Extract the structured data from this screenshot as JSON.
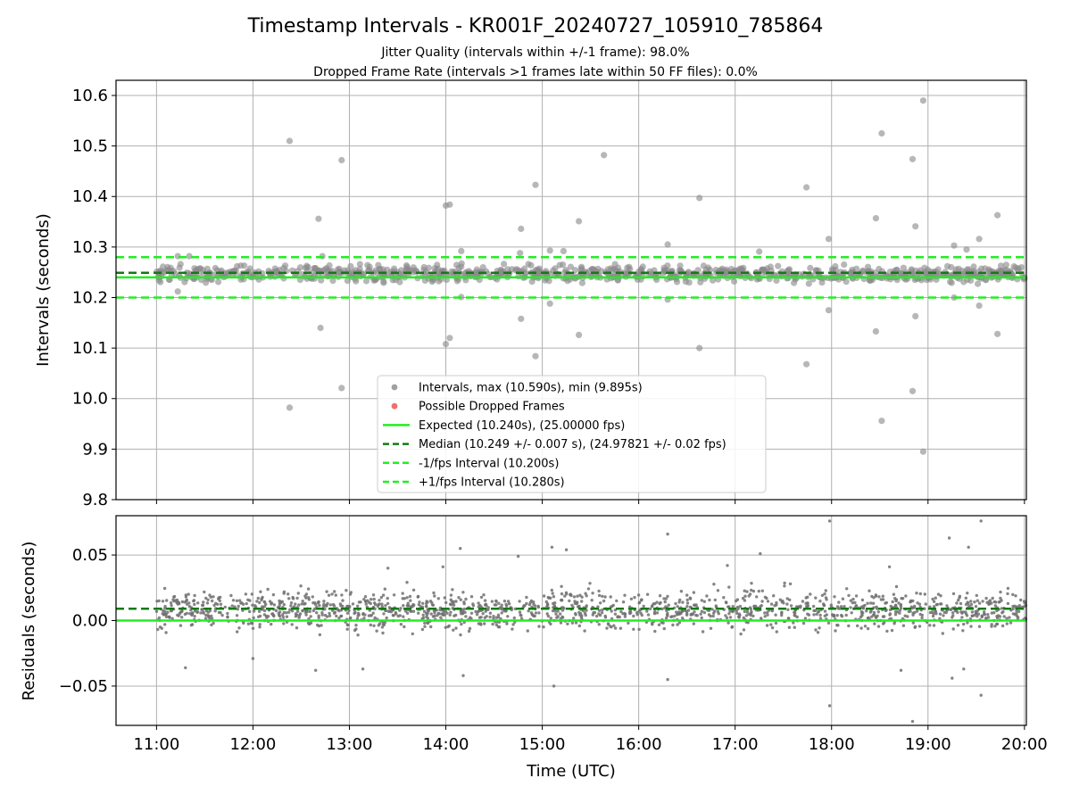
{
  "figure": {
    "title": "Timestamp Intervals - KR001F_20240727_105910_785864",
    "subtitle_line1": "Jitter Quality (intervals within +/-1 frame): 98.0%",
    "subtitle_line2": "Dropped Frame Rate (intervals >1 frames late within 50 FF files): 0.0%"
  },
  "chart_data": [
    {
      "type": "scatter",
      "panel": "intervals",
      "xlabel": "",
      "ylabel": "Intervals (seconds)",
      "xlim": [
        10.58,
        20.02
      ],
      "ylim": [
        9.8,
        10.63
      ],
      "yticks": [
        9.8,
        9.9,
        10.0,
        10.1,
        10.2,
        10.3,
        10.4,
        10.5,
        10.6
      ],
      "ytick_labels": [
        "9.8",
        "9.9",
        "10.0",
        "10.1",
        "10.2",
        "10.3",
        "10.4",
        "10.5",
        "10.6"
      ],
      "grid": true,
      "legend_position": "lower-center",
      "reference_lines": {
        "expected": 10.24,
        "median": 10.249,
        "minus_interval": 10.2,
        "plus_interval": 10.28
      },
      "dense_band": {
        "center": 10.247,
        "spread": 0.014,
        "x_start": 11.0,
        "x_end": 20.02
      },
      "outliers": [
        {
          "x": 12.38,
          "y": 10.51
        },
        {
          "x": 12.38,
          "y": 9.982
        },
        {
          "x": 12.68,
          "y": 10.356
        },
        {
          "x": 12.7,
          "y": 10.14
        },
        {
          "x": 12.92,
          "y": 10.472
        },
        {
          "x": 12.92,
          "y": 10.021
        },
        {
          "x": 14.0,
          "y": 10.382
        },
        {
          "x": 14.04,
          "y": 10.384
        },
        {
          "x": 14.0,
          "y": 10.108
        },
        {
          "x": 14.04,
          "y": 10.12
        },
        {
          "x": 14.78,
          "y": 10.336
        },
        {
          "x": 14.78,
          "y": 10.158
        },
        {
          "x": 14.93,
          "y": 10.423
        },
        {
          "x": 14.93,
          "y": 10.084
        },
        {
          "x": 15.08,
          "y": 10.293
        },
        {
          "x": 15.08,
          "y": 10.188
        },
        {
          "x": 15.22,
          "y": 10.292
        },
        {
          "x": 15.38,
          "y": 10.351
        },
        {
          "x": 15.38,
          "y": 10.126
        },
        {
          "x": 15.64,
          "y": 10.482
        },
        {
          "x": 16.3,
          "y": 10.305
        },
        {
          "x": 16.3,
          "y": 10.196
        },
        {
          "x": 16.63,
          "y": 10.397
        },
        {
          "x": 16.63,
          "y": 10.1
        },
        {
          "x": 17.25,
          "y": 10.291
        },
        {
          "x": 17.74,
          "y": 10.418
        },
        {
          "x": 17.74,
          "y": 10.068
        },
        {
          "x": 17.97,
          "y": 10.316
        },
        {
          "x": 17.97,
          "y": 10.175
        },
        {
          "x": 18.46,
          "y": 10.357
        },
        {
          "x": 18.46,
          "y": 10.133
        },
        {
          "x": 18.52,
          "y": 10.525
        },
        {
          "x": 18.52,
          "y": 9.956
        },
        {
          "x": 18.84,
          "y": 10.474
        },
        {
          "x": 18.84,
          "y": 10.015
        },
        {
          "x": 18.87,
          "y": 10.341
        },
        {
          "x": 18.87,
          "y": 10.163
        },
        {
          "x": 18.95,
          "y": 10.59
        },
        {
          "x": 18.95,
          "y": 9.895
        },
        {
          "x": 19.27,
          "y": 10.303
        },
        {
          "x": 19.27,
          "y": 10.2
        },
        {
          "x": 19.53,
          "y": 10.316
        },
        {
          "x": 19.53,
          "y": 10.184
        },
        {
          "x": 19.72,
          "y": 10.363
        },
        {
          "x": 19.72,
          "y": 10.128
        },
        {
          "x": 19.4,
          "y": 10.295
        },
        {
          "x": 14.16,
          "y": 10.292
        },
        {
          "x": 12.72,
          "y": 10.282
        },
        {
          "x": 11.22,
          "y": 10.282
        },
        {
          "x": 11.34,
          "y": 10.282
        },
        {
          "x": 14.77,
          "y": 10.288
        },
        {
          "x": 11.22,
          "y": 10.212
        },
        {
          "x": 14.16,
          "y": 10.201
        }
      ],
      "legend": [
        {
          "label": "Intervals, max (10.590s), min (9.895s)",
          "kind": "point",
          "color": "#a0a0a0"
        },
        {
          "label": "Possible Dropped Frames",
          "kind": "point",
          "color": "#f07070"
        },
        {
          "label": "Expected (10.240s), (25.00000 fps)",
          "kind": "line",
          "color": "#22ee22",
          "dash": "solid"
        },
        {
          "label": "Median (10.249 +/- 0.007 s), (24.97821 +/- 0.02 fps)",
          "kind": "line",
          "color": "#127a12",
          "dash": "dashed"
        },
        {
          "label": "-1/fps Interval (10.200s)",
          "kind": "line",
          "color": "#22ee22",
          "dash": "dashed"
        },
        {
          "label": "+1/fps Interval (10.280s)",
          "kind": "line",
          "color": "#22ee22",
          "dash": "dashed"
        }
      ]
    },
    {
      "type": "scatter",
      "panel": "residuals",
      "xlabel": "Time (UTC)",
      "ylabel": "Residuals (seconds)",
      "xlim": [
        10.58,
        20.02
      ],
      "ylim": [
        -0.08,
        0.08
      ],
      "x_ticks": [
        11,
        12,
        13,
        14,
        15,
        16,
        17,
        18,
        19,
        20
      ],
      "x_tick_labels": [
        "11:00",
        "12:00",
        "13:00",
        "14:00",
        "15:00",
        "16:00",
        "17:00",
        "18:00",
        "19:00",
        "20:00"
      ],
      "yticks": [
        -0.05,
        0.0,
        0.05
      ],
      "ytick_labels": [
        "−0.05",
        "0.00",
        "0.05"
      ],
      "grid": true,
      "reference_lines": {
        "zero": 0.0,
        "median_offset": 0.009
      },
      "dense_band": {
        "center": 0.008,
        "spread": 0.012,
        "x_start": 11.0,
        "x_end": 20.02
      },
      "outliers": [
        {
          "x": 17.98,
          "y": 0.076
        },
        {
          "x": 19.55,
          "y": 0.076
        },
        {
          "x": 16.3,
          "y": 0.066
        },
        {
          "x": 19.22,
          "y": 0.063
        },
        {
          "x": 14.15,
          "y": 0.055
        },
        {
          "x": 15.1,
          "y": 0.056
        },
        {
          "x": 15.25,
          "y": 0.054
        },
        {
          "x": 19.42,
          "y": 0.056
        },
        {
          "x": 17.26,
          "y": 0.051
        },
        {
          "x": 14.75,
          "y": 0.049
        },
        {
          "x": 18.84,
          "y": -0.077
        },
        {
          "x": 17.98,
          "y": -0.065
        },
        {
          "x": 15.12,
          "y": -0.05
        },
        {
          "x": 19.55,
          "y": -0.057
        },
        {
          "x": 16.3,
          "y": -0.045
        },
        {
          "x": 14.18,
          "y": -0.042
        },
        {
          "x": 19.25,
          "y": -0.044
        },
        {
          "x": 12.0,
          "y": -0.029
        },
        {
          "x": 11.3,
          "y": -0.036
        },
        {
          "x": 12.65,
          "y": -0.038
        },
        {
          "x": 13.14,
          "y": -0.037
        },
        {
          "x": 18.72,
          "y": -0.038
        },
        {
          "x": 19.37,
          "y": -0.037
        },
        {
          "x": 13.4,
          "y": 0.04
        },
        {
          "x": 13.97,
          "y": 0.041
        },
        {
          "x": 16.92,
          "y": 0.042
        },
        {
          "x": 18.6,
          "y": 0.041
        }
      ]
    }
  ]
}
